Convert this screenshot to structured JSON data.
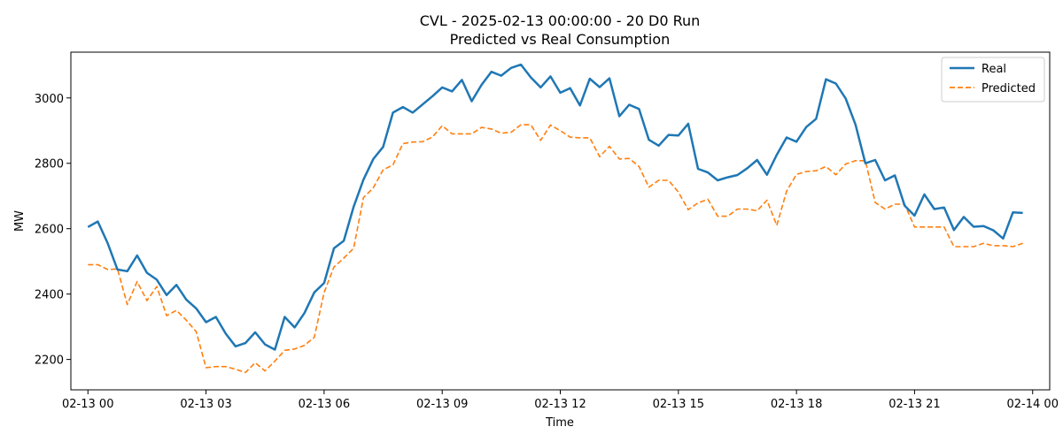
{
  "chart_data": {
    "type": "line",
    "title_line1": "CVL - 2025-02-13 00:00:00 - 20 D0 Run",
    "title_line2": "Predicted vs Real Consumption",
    "xlabel": "Time",
    "ylabel": "MW",
    "xlim": [
      "2025-02-12 23:34",
      "2025-02-14 00:26"
    ],
    "ylim": [
      2107,
      3140
    ],
    "x_tick_labels": [
      "02-13 00",
      "02-13 03",
      "02-13 06",
      "02-13 09",
      "02-13 12",
      "02-13 15",
      "02-13 18",
      "02-13 21",
      "02-14 00"
    ],
    "y_ticks": [
      2200,
      2400,
      2600,
      2800,
      3000
    ],
    "grid": false,
    "legend_position": "top-right",
    "x": [
      "00:00",
      "00:15",
      "00:30",
      "00:45",
      "01:00",
      "01:15",
      "01:30",
      "01:45",
      "02:00",
      "02:15",
      "02:30",
      "02:45",
      "03:00",
      "03:15",
      "03:30",
      "03:45",
      "04:00",
      "04:15",
      "04:30",
      "04:45",
      "05:00",
      "05:15",
      "05:30",
      "05:45",
      "06:00",
      "06:15",
      "06:30",
      "06:45",
      "07:00",
      "07:15",
      "07:30",
      "07:45",
      "08:00",
      "08:15",
      "08:30",
      "08:45",
      "09:00",
      "09:15",
      "09:30",
      "09:45",
      "10:00",
      "10:15",
      "10:30",
      "10:45",
      "11:00",
      "11:15",
      "11:30",
      "11:45",
      "12:00",
      "12:15",
      "12:30",
      "12:45",
      "13:00",
      "13:15",
      "13:30",
      "13:45",
      "14:00",
      "14:15",
      "14:30",
      "14:45",
      "15:00",
      "15:15",
      "15:30",
      "15:45",
      "16:00",
      "16:15",
      "16:30",
      "16:45",
      "17:00",
      "17:15",
      "17:30",
      "17:45",
      "18:00",
      "18:15",
      "18:30",
      "18:45",
      "19:00",
      "19:15",
      "19:30",
      "19:45",
      "20:00",
      "20:15",
      "20:30",
      "20:45",
      "21:00",
      "21:15",
      "21:30",
      "21:45",
      "22:00",
      "22:15",
      "22:30",
      "22:45",
      "23:00",
      "23:15",
      "23:30",
      "23:45"
    ],
    "series": [
      {
        "name": "Real",
        "color": "#1f77b4",
        "dash": "solid",
        "values": [
          2605,
          2622,
          2556,
          2475,
          2470,
          2518,
          2465,
          2444,
          2397,
          2428,
          2383,
          2356,
          2314,
          2330,
          2279,
          2240,
          2250,
          2283,
          2246,
          2230,
          2330,
          2298,
          2342,
          2405,
          2434,
          2540,
          2563,
          2667,
          2750,
          2813,
          2850,
          2955,
          2972,
          2955,
          2980,
          3005,
          3032,
          3020,
          3055,
          2990,
          3040,
          3080,
          3068,
          3092,
          3102,
          3063,
          3032,
          3066,
          3016,
          3030,
          2977,
          3059,
          3033,
          3060,
          2944,
          2979,
          2966,
          2872,
          2854,
          2887,
          2885,
          2921,
          2783,
          2772,
          2748,
          2757,
          2764,
          2785,
          2810,
          2765,
          2826,
          2879,
          2866,
          2911,
          2936,
          3057,
          3044,
          2998,
          2918,
          2800,
          2810,
          2748,
          2763,
          2670,
          2640,
          2705,
          2660,
          2665,
          2596,
          2636,
          2606,
          2608,
          2595,
          2570,
          2650,
          2648
        ]
      },
      {
        "name": "Predicted",
        "color": "#ff7f0e",
        "dash": "dashed",
        "values": [
          2490,
          2490,
          2475,
          2477,
          2368,
          2438,
          2380,
          2423,
          2334,
          2350,
          2320,
          2285,
          2175,
          2178,
          2178,
          2170,
          2160,
          2190,
          2165,
          2195,
          2228,
          2232,
          2243,
          2268,
          2405,
          2483,
          2510,
          2540,
          2695,
          2725,
          2780,
          2795,
          2860,
          2865,
          2866,
          2880,
          2915,
          2890,
          2890,
          2890,
          2910,
          2905,
          2892,
          2895,
          2918,
          2918,
          2870,
          2917,
          2900,
          2880,
          2878,
          2878,
          2820,
          2852,
          2813,
          2815,
          2790,
          2727,
          2748,
          2748,
          2712,
          2658,
          2679,
          2690,
          2638,
          2638,
          2660,
          2660,
          2655,
          2687,
          2610,
          2715,
          2766,
          2775,
          2777,
          2790,
          2765,
          2798,
          2808,
          2808,
          2680,
          2660,
          2675,
          2675,
          2605,
          2605,
          2605,
          2605,
          2545,
          2545,
          2545,
          2555,
          2548,
          2548,
          2545,
          2555
        ]
      }
    ]
  }
}
